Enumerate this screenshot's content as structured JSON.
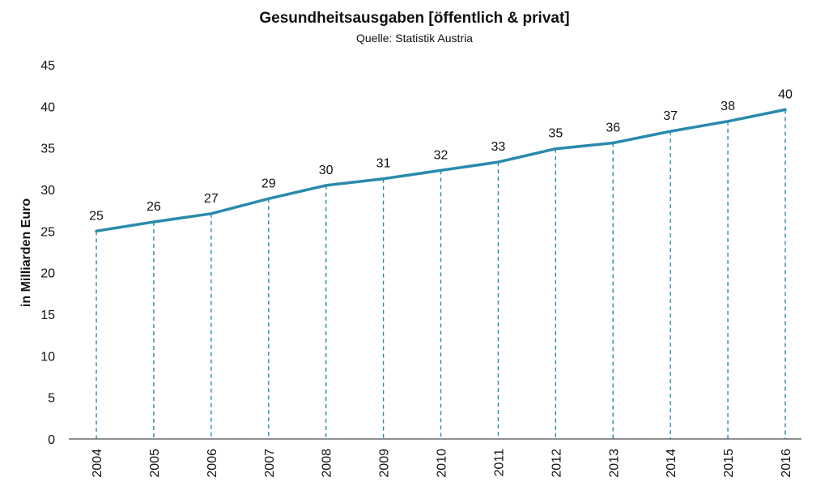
{
  "chart_data": {
    "type": "line",
    "title": "Gesundheitsausgaben [öffentlich & privat]",
    "subtitle": "Quelle: Statistik Austria",
    "ylabel": "in Milliarden Euro",
    "xlabel": "",
    "ylim": [
      0,
      45
    ],
    "yticks": [
      0,
      5,
      10,
      15,
      20,
      25,
      30,
      35,
      40,
      45
    ],
    "categories": [
      "2004",
      "2005",
      "2006",
      "2007",
      "2008",
      "2009",
      "2010",
      "2011",
      "2012",
      "2013",
      "2014",
      "2015",
      "2016"
    ],
    "values": [
      25.0,
      26.1,
      27.1,
      28.9,
      30.5,
      31.3,
      32.3,
      33.3,
      34.9,
      35.6,
      37.0,
      38.2,
      39.6
    ],
    "data_labels": [
      "25",
      "26",
      "27",
      "29",
      "30",
      "31",
      "32",
      "33",
      "35",
      "36",
      "37",
      "38",
      "40"
    ],
    "grid": false,
    "drop_lines": true,
    "legend": "none",
    "line_color": "#2a8aab",
    "drop_line_color": "#2a8aab"
  }
}
